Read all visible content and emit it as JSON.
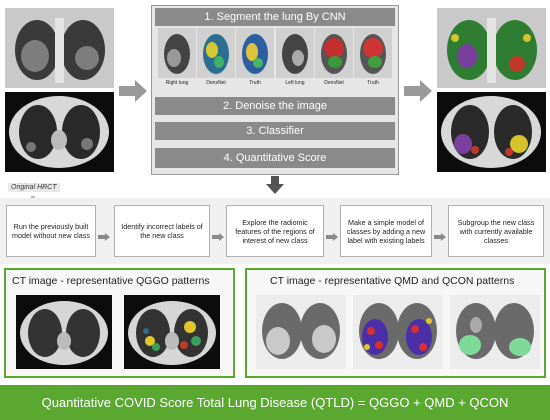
{
  "pipeline": {
    "step1": "1. Segment the lung By CNN",
    "step2": "2. Denoise the image",
    "step3": "3. Classifier",
    "step4": "4. Quantitative Score",
    "captions": [
      "Right lung",
      "DensNet",
      "Truth",
      "Left lung",
      "DensNet",
      "Truth"
    ]
  },
  "original_label": "Original HRCT",
  "flow_steps": [
    "Run the previously built model without new class",
    "Identify incorrect labels of the new class",
    "Explore the radiomic features of the regions of interest of new class",
    "Make a simple model of classes by adding a new label with existing labels",
    "Subgroup the new class with currently available classes"
  ],
  "qggo_panel": {
    "title": "CT image - representative QGGO patterns"
  },
  "qmd_panel": {
    "title": "CT image - representative QMD and QCON patterns"
  },
  "banner": "Quantitative COVID Score Total Lung Disease (QTLD) = QGGO + QMD + QCON",
  "colors": {
    "banner_green": "#5aa830",
    "step_gray": "#8a8a8a",
    "arrow_gray": "#9a9a9a",
    "dark_arrow": "#555555"
  }
}
